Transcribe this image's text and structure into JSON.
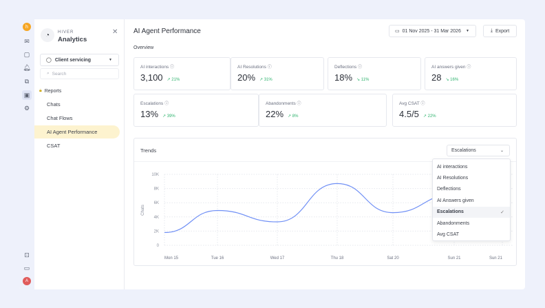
{
  "rail": {
    "icons": [
      "hiver-logo-icon",
      "mail-icon",
      "chat-icon",
      "notification-icon",
      "copy-icon",
      "analytics-icon",
      "settings-icon",
      "help-icon",
      "feedback-icon"
    ],
    "avatar": "A"
  },
  "sidebar": {
    "brand_top": "HIVER",
    "brand": "Analytics",
    "workspace": "Client servicing",
    "search_placeholder": "Search",
    "section": "Reports",
    "items": [
      {
        "label": "Chats"
      },
      {
        "label": "Chat Flows"
      },
      {
        "label": "AI Agent Performance",
        "active": true
      },
      {
        "label": "CSAT"
      }
    ]
  },
  "header": {
    "title": "AI Agent Performance",
    "date_range": "01 Nov 2025 - 31 Mar 2026",
    "export": "Export"
  },
  "overview": {
    "label": "Overview",
    "cards": [
      {
        "label": "AI interactions",
        "value": "3,100",
        "trend": "21%",
        "dir": "up"
      },
      {
        "label": "AI Resolutions",
        "value": "20%",
        "trend": "31%",
        "dir": "up"
      },
      {
        "label": "Deflections",
        "value": "18%",
        "trend": "11%",
        "dir": "down"
      },
      {
        "label": "AI answers given",
        "value": "28",
        "trend": "16%",
        "dir": "down"
      },
      {
        "label": "Escalations",
        "value": "13%",
        "trend": "39%",
        "dir": "up"
      },
      {
        "label": "Abandonments",
        "value": "22%",
        "trend": "8%",
        "dir": "up"
      },
      {
        "label": "Avg CSAT",
        "value": "4.5/5",
        "trend": "22%",
        "dir": "up"
      }
    ]
  },
  "trends": {
    "title": "Trends",
    "selected": "Escalations",
    "options": [
      "AI interactions",
      "AI Resolutions",
      "Deflections",
      "AI Answers given",
      "Escalations",
      "Abandonments",
      "Avg CSAT"
    ]
  },
  "chart_data": {
    "type": "line",
    "ylabel": "Chats",
    "ylim": [
      0,
      10000
    ],
    "yticks": [
      "0",
      "2K",
      "4K",
      "6K",
      "8K",
      "10K"
    ],
    "grid": true,
    "categories": [
      "Mon  15",
      "Tue  16",
      "Wed  17",
      "Thu  18",
      "Sat  20",
      "Sun  21",
      "Sun  21"
    ],
    "values": [
      1800,
      4900,
      3300,
      8700,
      4600,
      7200,
      6000
    ],
    "color": "#6f8ff5"
  },
  "colors": {
    "accent": "#fdf3cf",
    "trend": "#2fb36e",
    "line": "#6f8ff5"
  }
}
